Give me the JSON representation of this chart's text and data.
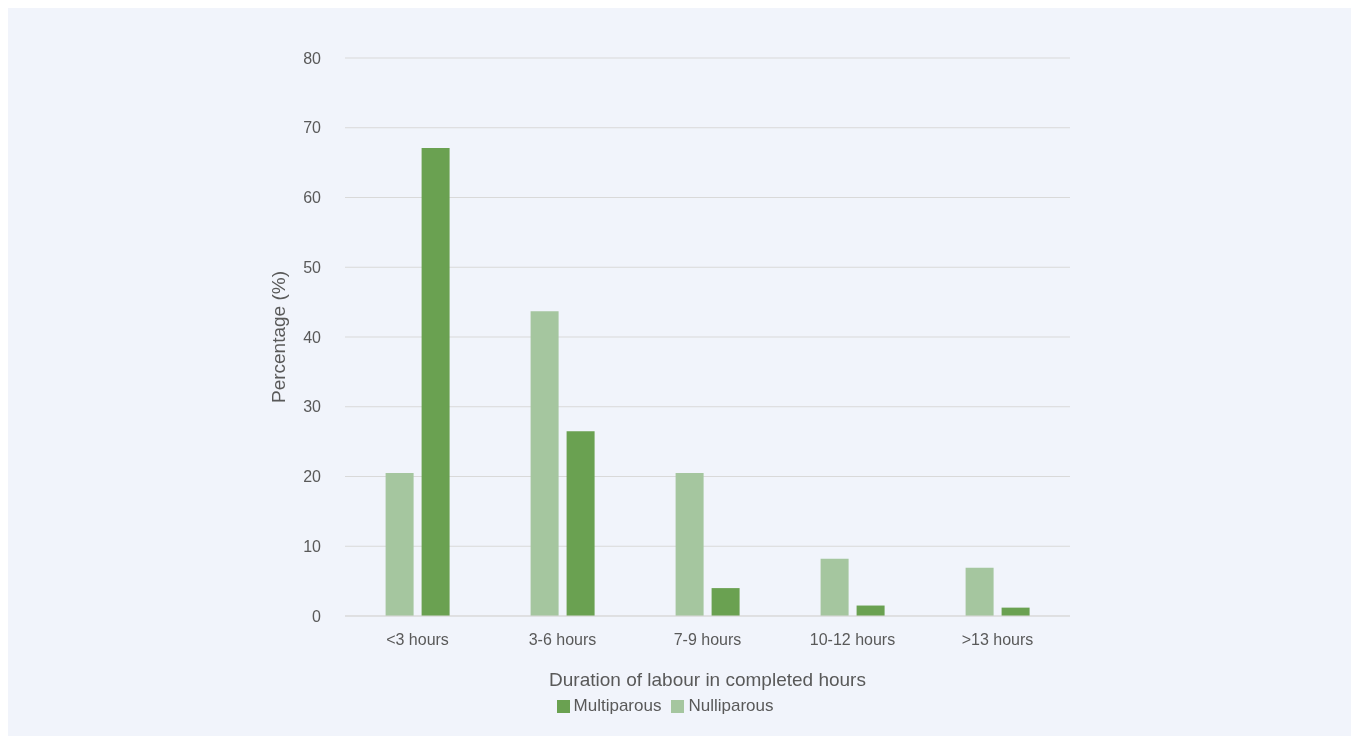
{
  "chart_data": {
    "type": "bar",
    "xlabel": "Duration of labour in completed hours",
    "ylabel": "Percentage (%)",
    "categories": [
      "<3 hours",
      "3-6 hours",
      "7-9 hours",
      "10-12 hours",
      ">13 hours"
    ],
    "series": [
      {
        "name": "Nulliparous",
        "color": "#a5c69f",
        "values": [
          20.5,
          43.7,
          20.5,
          8.2,
          6.9
        ]
      },
      {
        "name": "Multiparous",
        "color": "#6aa151",
        "values": [
          67.1,
          26.5,
          4.0,
          1.5,
          1.2
        ]
      }
    ],
    "ylim": [
      0,
      80
    ],
    "yticks": [
      0,
      10,
      20,
      30,
      40,
      50,
      60,
      70,
      80
    ],
    "grid": "y",
    "legend": "bottom"
  }
}
